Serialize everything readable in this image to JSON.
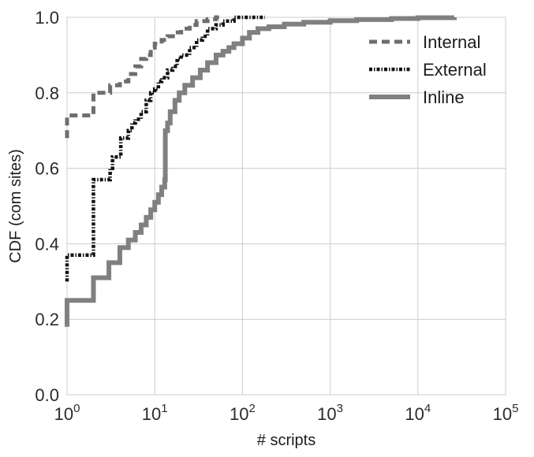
{
  "chart_data": {
    "type": "line",
    "title": "",
    "xlabel": "# scripts",
    "ylabel": "CDF (com sites)",
    "x_scale": "log",
    "xlim": [
      1,
      100000
    ],
    "ylim": [
      0.0,
      1.0
    ],
    "grid": true,
    "legend_position": "top-right",
    "x_tick_labels": [
      {
        "value": 1,
        "base": "10",
        "exp": "0"
      },
      {
        "value": 10,
        "base": "10",
        "exp": "1"
      },
      {
        "value": 100,
        "base": "10",
        "exp": "2"
      },
      {
        "value": 1000,
        "base": "10",
        "exp": "3"
      },
      {
        "value": 10000,
        "base": "10",
        "exp": "4"
      },
      {
        "value": 100000,
        "base": "10",
        "exp": "5"
      }
    ],
    "y_ticks": [
      {
        "value": 0.0,
        "label": "0.0"
      },
      {
        "value": 0.2,
        "label": "0.2"
      },
      {
        "value": 0.4,
        "label": "0.4"
      },
      {
        "value": 0.6,
        "label": "0.6"
      },
      {
        "value": 0.8,
        "label": "0.8"
      },
      {
        "value": 1.0,
        "label": "1.0"
      }
    ],
    "series": [
      {
        "name": "Internal",
        "style": "dashed",
        "color": "#6e6e6e",
        "points": [
          [
            1,
            0.68
          ],
          [
            1,
            0.74
          ],
          [
            1.9,
            0.74
          ],
          [
            2,
            0.8
          ],
          [
            3,
            0.8
          ],
          [
            3.1,
            0.82
          ],
          [
            4,
            0.83
          ],
          [
            5,
            0.85
          ],
          [
            6,
            0.87
          ],
          [
            7,
            0.89
          ],
          [
            8,
            0.9
          ],
          [
            9,
            0.92
          ],
          [
            10,
            0.93
          ],
          [
            12,
            0.94
          ],
          [
            14,
            0.95
          ],
          [
            17,
            0.96
          ],
          [
            20,
            0.97
          ],
          [
            25,
            0.98
          ],
          [
            30,
            0.99
          ],
          [
            40,
            0.995
          ],
          [
            50,
            1.0
          ],
          [
            60,
            1.0
          ]
        ]
      },
      {
        "name": "External",
        "style": "dashdot",
        "color": "#111111",
        "points": [
          [
            1,
            0.3
          ],
          [
            1,
            0.37
          ],
          [
            1.9,
            0.37
          ],
          [
            2,
            0.57
          ],
          [
            3,
            0.57
          ],
          [
            3.1,
            0.6
          ],
          [
            3.3,
            0.63
          ],
          [
            4,
            0.63
          ],
          [
            4.1,
            0.68
          ],
          [
            5,
            0.7
          ],
          [
            5.5,
            0.72
          ],
          [
            6,
            0.73
          ],
          [
            7,
            0.75
          ],
          [
            8,
            0.78
          ],
          [
            9,
            0.8
          ],
          [
            10,
            0.81
          ],
          [
            11,
            0.83
          ],
          [
            12,
            0.84
          ],
          [
            14,
            0.86
          ],
          [
            16,
            0.87
          ],
          [
            18,
            0.89
          ],
          [
            20,
            0.9
          ],
          [
            25,
            0.92
          ],
          [
            30,
            0.94
          ],
          [
            35,
            0.95
          ],
          [
            40,
            0.97
          ],
          [
            50,
            0.98
          ],
          [
            60,
            0.99
          ],
          [
            80,
            1.0
          ],
          [
            180,
            1.0
          ]
        ]
      },
      {
        "name": "Inline",
        "style": "solid",
        "color": "#808080",
        "points": [
          [
            1,
            0.18
          ],
          [
            1,
            0.25
          ],
          [
            1.95,
            0.25
          ],
          [
            2,
            0.31
          ],
          [
            2.9,
            0.31
          ],
          [
            3,
            0.35
          ],
          [
            3.9,
            0.35
          ],
          [
            4,
            0.39
          ],
          [
            5,
            0.41
          ],
          [
            6,
            0.43
          ],
          [
            7,
            0.45
          ],
          [
            8,
            0.47
          ],
          [
            9,
            0.49
          ],
          [
            10,
            0.51
          ],
          [
            11,
            0.53
          ],
          [
            12,
            0.55
          ],
          [
            13,
            0.57
          ],
          [
            13.2,
            0.7
          ],
          [
            14,
            0.72
          ],
          [
            15,
            0.75
          ],
          [
            17,
            0.78
          ],
          [
            19,
            0.8
          ],
          [
            22,
            0.82
          ],
          [
            27,
            0.84
          ],
          [
            33,
            0.86
          ],
          [
            40,
            0.88
          ],
          [
            50,
            0.9
          ],
          [
            60,
            0.91
          ],
          [
            70,
            0.92
          ],
          [
            80,
            0.93
          ],
          [
            100,
            0.945
          ],
          [
            120,
            0.96
          ],
          [
            150,
            0.97
          ],
          [
            200,
            0.975
          ],
          [
            300,
            0.982
          ],
          [
            500,
            0.987
          ],
          [
            1000,
            0.991
          ],
          [
            2000,
            0.994
          ],
          [
            5000,
            0.997
          ],
          [
            10000,
            0.999
          ],
          [
            26000,
            1.0
          ]
        ]
      }
    ]
  }
}
